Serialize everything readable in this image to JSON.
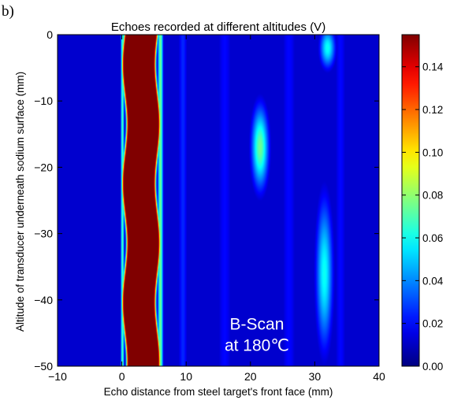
{
  "panel_label": "b)",
  "chart_data": {
    "type": "heatmap",
    "title": "Echoes recorded at different altitudes (V)",
    "xlabel": "Echo distance from steel target's front face (mm)",
    "ylabel": "Altitude of transducer underneath sodium surface (mm)",
    "xlim": [
      -10,
      40
    ],
    "ylim": [
      -50,
      0
    ],
    "x_ticks": [
      "−10",
      "0",
      "10",
      "20",
      "30",
      "40"
    ],
    "x_tick_values": [
      -10,
      0,
      10,
      20,
      30,
      40
    ],
    "y_ticks": [
      "0",
      "−10",
      "−20",
      "−30",
      "−40",
      "−50"
    ],
    "y_tick_values": [
      0,
      -10,
      -20,
      -30,
      -40,
      -50
    ],
    "colorbar": {
      "colormap": "jet",
      "range": [
        0.0,
        0.155
      ],
      "ticks": [
        "0.00",
        "0.02",
        "0.04",
        "0.06",
        "0.08",
        "0.10",
        "0.12",
        "0.14"
      ],
      "tick_values": [
        0.0,
        0.02,
        0.04,
        0.06,
        0.08,
        0.1,
        0.12,
        0.14
      ]
    },
    "background_value": 0.012,
    "features": [
      {
        "kind": "vertical-band",
        "x_center": 3.0,
        "x_width": 4.6,
        "value": 0.155,
        "y_range": [
          -50,
          0
        ]
      },
      {
        "kind": "vertical-band",
        "x_center": 0.1,
        "x_width": 0.5,
        "value": 0.07,
        "y_range": [
          -50,
          0
        ]
      },
      {
        "kind": "vertical-band",
        "x_center": 6.0,
        "x_width": 0.8,
        "value": 0.075,
        "y_range": [
          -50,
          0
        ]
      },
      {
        "kind": "vertical-band",
        "x_center": 9.5,
        "x_width": 1.5,
        "value": 0.025,
        "y_range": [
          -50,
          0
        ]
      },
      {
        "kind": "vertical-band",
        "x_center": 16.0,
        "x_width": 2.5,
        "value": 0.02,
        "y_range": [
          -50,
          0
        ]
      },
      {
        "kind": "vertical-band",
        "x_center": 26.0,
        "x_width": 2.5,
        "value": 0.02,
        "y_range": [
          -50,
          0
        ]
      },
      {
        "kind": "vertical-band",
        "x_center": 34.0,
        "x_width": 2.0,
        "value": 0.02,
        "y_range": [
          -50,
          0
        ]
      },
      {
        "kind": "blob",
        "x_center": 21.5,
        "x_width": 1.3,
        "y_center": -17,
        "y_width": 6.0,
        "value": 0.075
      },
      {
        "kind": "blob",
        "x_center": 32.0,
        "x_width": 1.2,
        "y_center": -2,
        "y_width": 3.0,
        "value": 0.06
      },
      {
        "kind": "blob",
        "x_center": 31.5,
        "x_width": 1.3,
        "y_center": -36,
        "y_width": 11.0,
        "value": 0.06
      }
    ],
    "annotation": {
      "lines": [
        "B-Scan",
        "at 180℃"
      ],
      "x": 21,
      "y": -44.5,
      "color": "#ffffff"
    }
  }
}
